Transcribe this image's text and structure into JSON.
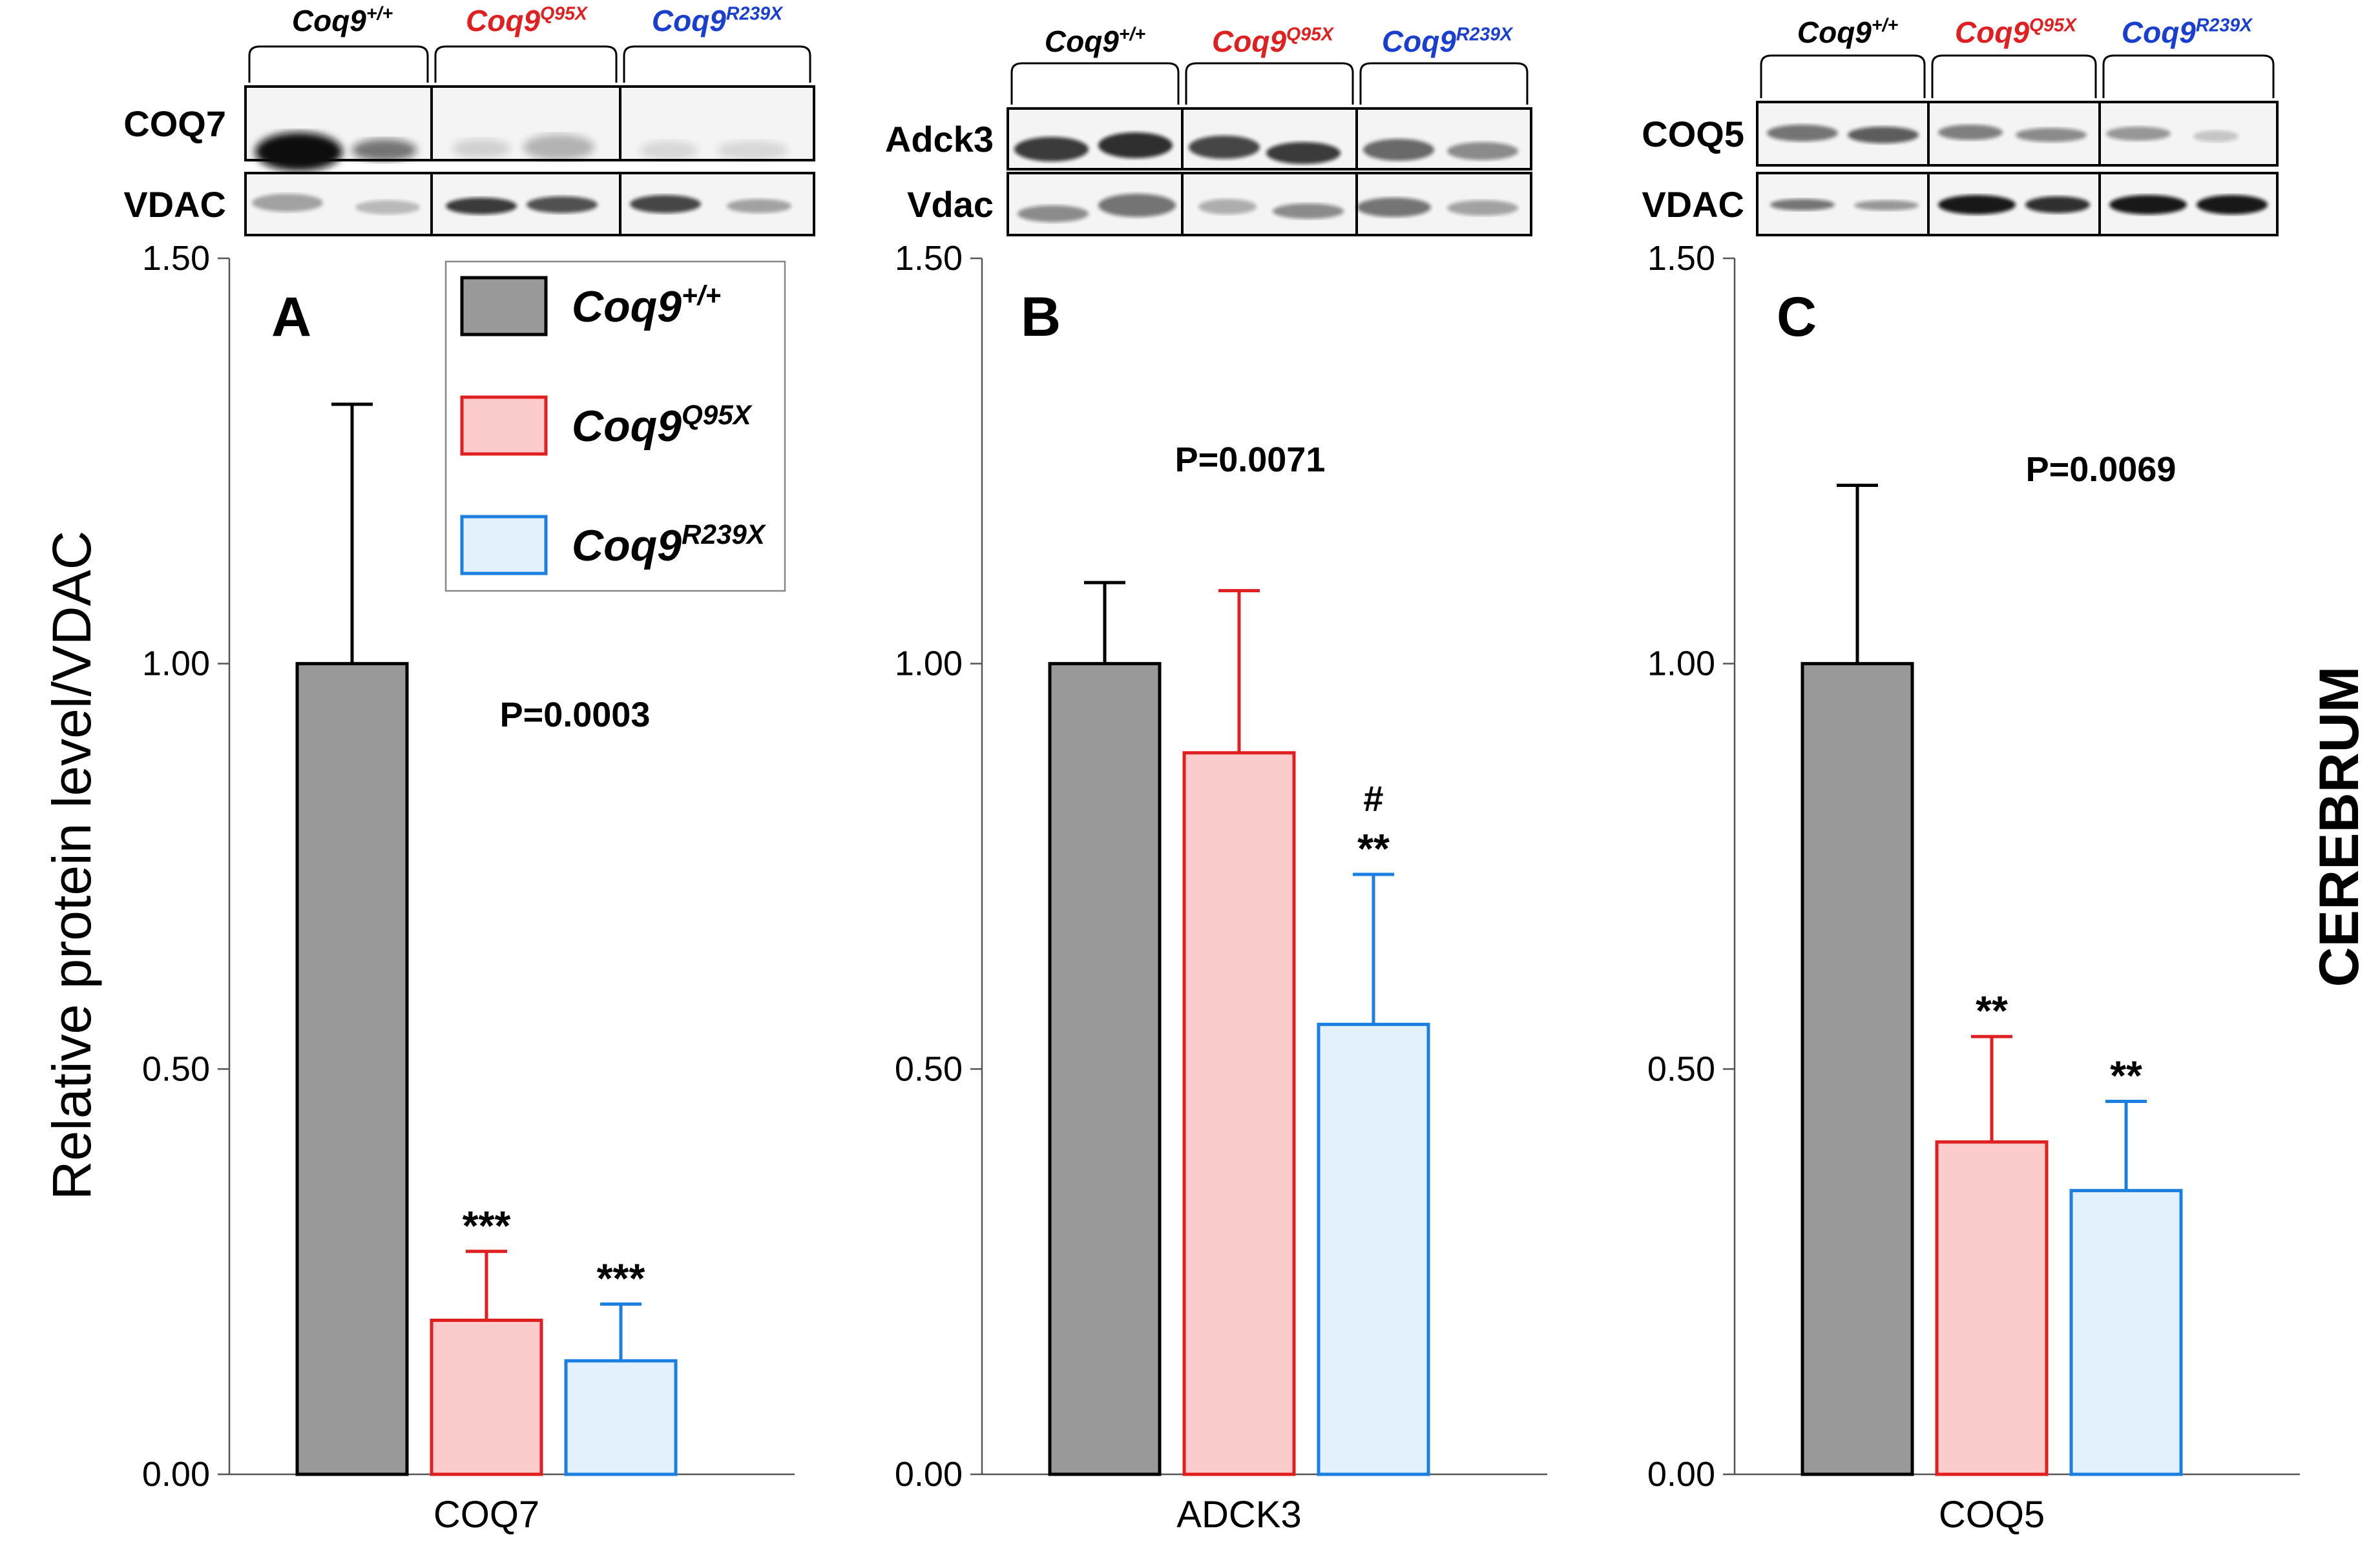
{
  "figure": {
    "y_axis_label": "Relative protein level/VDAC",
    "side_label": "CEREBRUM"
  },
  "legend": {
    "entries": [
      {
        "base": "Coq9",
        "sup": "+/+",
        "fill": "#999999",
        "stroke": "#000000"
      },
      {
        "base": "Coq9",
        "sup": "Q95X",
        "fill": "#fccccc",
        "stroke": "#e02020"
      },
      {
        "base": "Coq9",
        "sup": "R239X",
        "fill": "#e3f1fc",
        "stroke": "#1a7fe0"
      }
    ]
  },
  "blots": [
    {
      "genotypes": [
        {
          "base": "Coq9",
          "sup": "+/+",
          "color": "#000000"
        },
        {
          "base": "Coq9",
          "sup": "Q95X",
          "color": "#e02020"
        },
        {
          "base": "Coq9",
          "sup": "R239X",
          "color": "#1a3fd0"
        }
      ],
      "rows": [
        "COQ7",
        "VDAC"
      ]
    },
    {
      "genotypes": [
        {
          "base": "Coq9",
          "sup": "+/+",
          "color": "#000000"
        },
        {
          "base": "Coq9",
          "sup": "Q95X",
          "color": "#e02020"
        },
        {
          "base": "Coq9",
          "sup": "R239X",
          "color": "#1a3fd0"
        }
      ],
      "rows": [
        "Adck3",
        "Vdac"
      ]
    },
    {
      "genotypes": [
        {
          "base": "Coq9",
          "sup": "+/+",
          "color": "#000000"
        },
        {
          "base": "Coq9",
          "sup": "Q95X",
          "color": "#e02020"
        },
        {
          "base": "Coq9",
          "sup": "R239X",
          "color": "#1a3fd0"
        }
      ],
      "rows": [
        "COQ5",
        "VDAC"
      ]
    }
  ],
  "chart_data": [
    {
      "type": "bar",
      "panel": "A",
      "categories": [
        "COQ7"
      ],
      "series": [
        {
          "name": "Coq9+/+",
          "values": [
            1.0
          ],
          "error": [
            0.32
          ],
          "annotation": ""
        },
        {
          "name": "Coq9Q95X",
          "values": [
            0.19
          ],
          "error": [
            0.085
          ],
          "annotation": "***"
        },
        {
          "name": "Coq9R239X",
          "values": [
            0.14
          ],
          "error": [
            0.07
          ],
          "annotation": "***"
        }
      ],
      "ylim": [
        0,
        1.5
      ],
      "yticks": [
        "0.00",
        "0.50",
        "1.00",
        "1.50"
      ],
      "xlabel": "COQ7",
      "p_value": "P=0.0003",
      "legend": "top-right"
    },
    {
      "type": "bar",
      "panel": "B",
      "categories": [
        "ADCK3"
      ],
      "series": [
        {
          "name": "Coq9+/+",
          "values": [
            1.0
          ],
          "error": [
            0.1
          ],
          "annotation": ""
        },
        {
          "name": "Coq9Q95X",
          "values": [
            0.89
          ],
          "error": [
            0.2
          ],
          "annotation": ""
        },
        {
          "name": "Coq9R239X",
          "values": [
            0.555
          ],
          "error": [
            0.185
          ],
          "annotation": "**",
          "annotation2": "#"
        }
      ],
      "ylim": [
        0,
        1.5
      ],
      "yticks": [
        "0.00",
        "0.50",
        "1.00",
        "1.50"
      ],
      "xlabel": "ADCK3",
      "p_value": "P=0.0071"
    },
    {
      "type": "bar",
      "panel": "C",
      "categories": [
        "COQ5"
      ],
      "series": [
        {
          "name": "Coq9+/+",
          "values": [
            1.0
          ],
          "error": [
            0.22
          ],
          "annotation": ""
        },
        {
          "name": "Coq9Q95X",
          "values": [
            0.41
          ],
          "error": [
            0.13
          ],
          "annotation": "**"
        },
        {
          "name": "Coq9R239X",
          "values": [
            0.35
          ],
          "error": [
            0.11
          ],
          "annotation": "**"
        }
      ],
      "ylim": [
        0,
        1.5
      ],
      "yticks": [
        "0.00",
        "0.50",
        "1.00",
        "1.50"
      ],
      "xlabel": "COQ5",
      "p_value": "P=0.0069"
    }
  ]
}
